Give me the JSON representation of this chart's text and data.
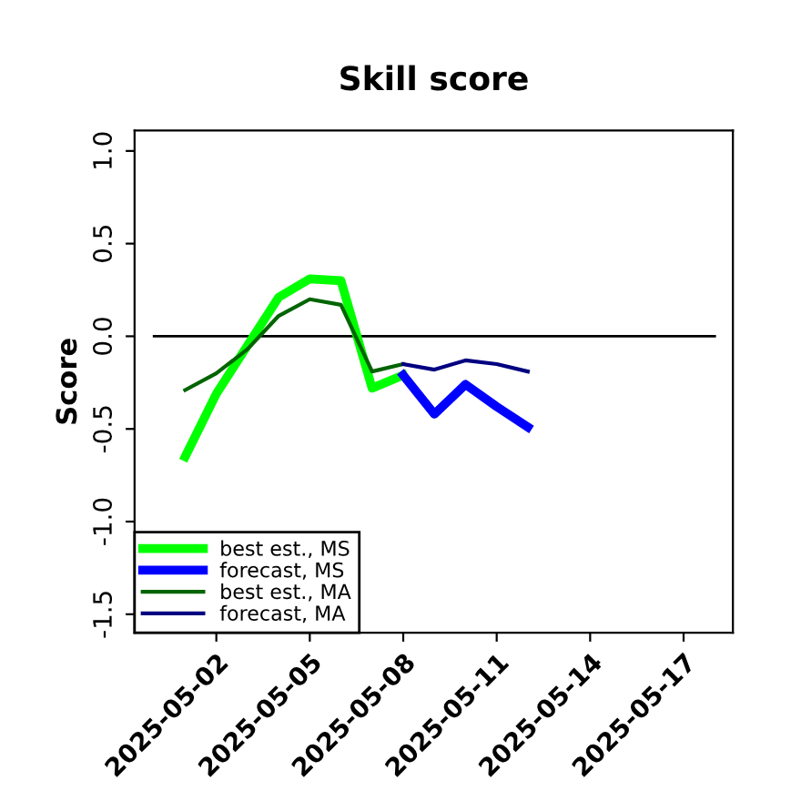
{
  "chart_data": {
    "type": "line",
    "title": "Skill score",
    "ylabel": "Score",
    "xlim": [
      "2025-04-29T09:00",
      "2025-05-18T14:00"
    ],
    "ylim": [
      -1.6,
      1.11
    ],
    "xticks": [
      "2025-05-02",
      "2025-05-05",
      "2025-05-08",
      "2025-05-11",
      "2025-05-14",
      "2025-05-17"
    ],
    "yticks": [
      -1.5,
      {
        "value": -1.0,
        "label": "-1.0"
      },
      -0.5,
      {
        "value": 0.0,
        "label": "0.0"
      },
      0.5,
      {
        "value": 1.0,
        "label": "1.0"
      }
    ],
    "grid": false,
    "legend": "bottom left",
    "line_style": "solid",
    "marker": "none",
    "series": [
      {
        "x": [
          "2025-04-30",
          "2025-05-18"
        ],
        "values": [
          0,
          0
        ],
        "color": "#000000"
      },
      {
        "name": "best est., MS",
        "color": "#00ff00",
        "x": [
          "2025-05-01",
          "2025-05-02",
          "2025-05-03",
          "2025-05-04",
          "2025-05-05",
          "2025-05-06",
          "2025-05-07",
          "2025-05-08"
        ],
        "values": [
          -0.65,
          -0.31,
          -0.05,
          0.21,
          0.31,
          0.3,
          -0.28,
          -0.21
        ]
      },
      {
        "name": "forecast, MS",
        "color": "#0000ff",
        "x": [
          "2025-05-08",
          "2025-05-09",
          "2025-05-10",
          "2025-05-11",
          "2025-05-12"
        ],
        "values": [
          -0.21,
          -0.42,
          -0.26,
          -0.38,
          -0.49
        ]
      },
      {
        "name": "best est., MA",
        "color": "#006400",
        "x": [
          "2025-05-01",
          "2025-05-02",
          "2025-05-03",
          "2025-05-04",
          "2025-05-05",
          "2025-05-06",
          "2025-05-07",
          "2025-05-08"
        ],
        "values": [
          -0.29,
          -0.2,
          -0.07,
          0.11,
          0.2,
          0.17,
          -0.19,
          -0.15
        ]
      },
      {
        "name": "forecast, MA",
        "color": "#000080",
        "x": [
          "2025-05-08",
          "2025-05-09",
          "2025-05-10",
          "2025-05-11",
          "2025-05-12"
        ],
        "values": [
          -0.15,
          -0.18,
          -0.13,
          -0.15,
          -0.19
        ]
      }
    ]
  }
}
